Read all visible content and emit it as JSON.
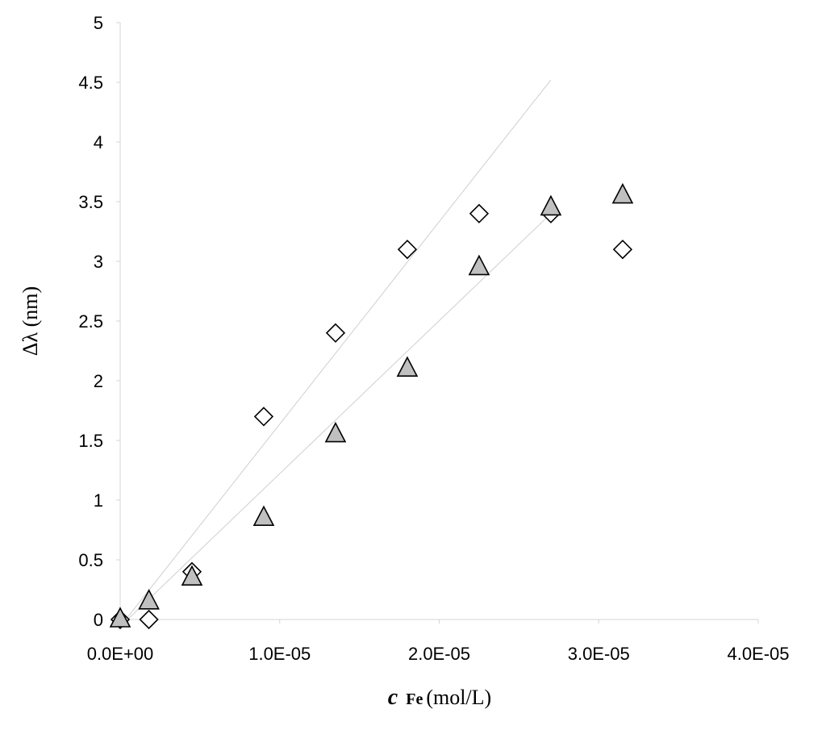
{
  "chart_data": {
    "type": "scatter",
    "title": "",
    "xlabel": {
      "var": "c",
      "sub": "Fe",
      "unit": " (mol/L)"
    },
    "ylabel": "Δλ  (nm)",
    "xlim": [
      0,
      4e-05
    ],
    "ylim": [
      0,
      5
    ],
    "x_ticks": [
      0,
      1e-05,
      2e-05,
      3e-05,
      4e-05
    ],
    "x_tick_labels": [
      "0.0E+00",
      "1.0E-05",
      "2.0E-05",
      "3.0E-05",
      "4.0E-05"
    ],
    "y_ticks": [
      0,
      0.5,
      1,
      1.5,
      2,
      2.5,
      3,
      3.5,
      4,
      4.5,
      5
    ],
    "y_tick_labels": [
      "0",
      "0.5",
      "1",
      "1.5",
      "2",
      "2.5",
      "3",
      "3.5",
      "4",
      "4.5",
      "5"
    ],
    "grid": false,
    "legend": "none",
    "series": [
      {
        "marker": "diamond",
        "fill": "#ffffff",
        "stroke": "#000000",
        "points": [
          [
            0,
            0
          ],
          [
            1.8e-06,
            0
          ],
          [
            4.5e-06,
            0.4
          ],
          [
            9e-06,
            1.7
          ],
          [
            1.35e-05,
            2.4
          ],
          [
            1.8e-05,
            3.1
          ],
          [
            2.25e-05,
            3.4
          ],
          [
            2.7e-05,
            3.4
          ],
          [
            3.15e-05,
            3.1
          ]
        ],
        "trendline": [
          [
            0,
            -0.06
          ],
          [
            2.7e-05,
            4.52
          ]
        ]
      },
      {
        "marker": "triangle",
        "fill": "#c0c0c0",
        "stroke": "#000000",
        "points": [
          [
            0,
            0
          ],
          [
            1.8e-06,
            0.15
          ],
          [
            4.5e-06,
            0.35
          ],
          [
            9e-06,
            0.85
          ],
          [
            1.35e-05,
            1.55
          ],
          [
            1.8e-05,
            2.1
          ],
          [
            2.25e-05,
            2.95
          ],
          [
            2.7e-05,
            3.45
          ],
          [
            3.15e-05,
            3.55
          ]
        ],
        "trendline": [
          [
            0,
            -0.06
          ],
          [
            2.7e-05,
            3.4
          ]
        ]
      }
    ]
  }
}
